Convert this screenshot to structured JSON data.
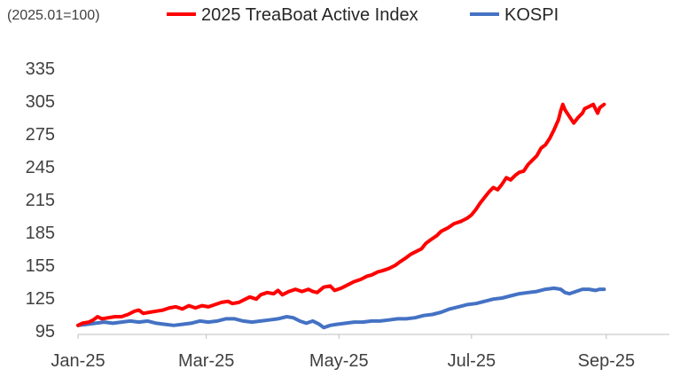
{
  "chart_data": {
    "type": "line",
    "unit_note": "(2025.01=100)",
    "grid": false,
    "legend_position": "top",
    "ylim": [
      95,
      335
    ],
    "yticks": [
      95,
      125,
      155,
      185,
      215,
      245,
      275,
      305,
      335
    ],
    "xlim": [
      "2025-01-01",
      "2025-09-30"
    ],
    "xticks": [
      {
        "date": "2025-01-01",
        "label": "Jan-25"
      },
      {
        "date": "2025-03-01",
        "label": "Mar-25"
      },
      {
        "date": "2025-05-01",
        "label": "May-25"
      },
      {
        "date": "2025-07-01",
        "label": "Jul-25"
      },
      {
        "date": "2025-09-01",
        "label": "Sep-25"
      }
    ],
    "series": [
      {
        "name": "2025 TreaBoat Active Index",
        "color": "#FF0000",
        "points": [
          [
            "2025-01-01",
            100
          ],
          [
            "2025-01-03",
            102
          ],
          [
            "2025-01-06",
            103
          ],
          [
            "2025-01-08",
            105
          ],
          [
            "2025-01-10",
            108
          ],
          [
            "2025-01-12",
            106
          ],
          [
            "2025-01-15",
            107
          ],
          [
            "2025-01-18",
            108
          ],
          [
            "2025-01-21",
            108
          ],
          [
            "2025-01-24",
            110
          ],
          [
            "2025-01-27",
            113
          ],
          [
            "2025-01-29",
            114
          ],
          [
            "2025-01-31",
            111
          ],
          [
            "2025-02-03",
            112
          ],
          [
            "2025-02-06",
            113
          ],
          [
            "2025-02-09",
            114
          ],
          [
            "2025-02-12",
            116
          ],
          [
            "2025-02-15",
            117
          ],
          [
            "2025-02-18",
            115
          ],
          [
            "2025-02-21",
            118
          ],
          [
            "2025-02-24",
            116
          ],
          [
            "2025-02-27",
            118
          ],
          [
            "2025-03-02",
            117
          ],
          [
            "2025-03-05",
            119
          ],
          [
            "2025-03-08",
            121
          ],
          [
            "2025-03-11",
            122
          ],
          [
            "2025-03-13",
            120
          ],
          [
            "2025-03-16",
            121
          ],
          [
            "2025-03-19",
            124
          ],
          [
            "2025-03-21",
            126
          ],
          [
            "2025-03-24",
            124
          ],
          [
            "2025-03-26",
            128
          ],
          [
            "2025-03-29",
            130
          ],
          [
            "2025-04-01",
            129
          ],
          [
            "2025-04-03",
            132
          ],
          [
            "2025-04-05",
            128
          ],
          [
            "2025-04-08",
            131
          ],
          [
            "2025-04-11",
            133
          ],
          [
            "2025-04-14",
            131
          ],
          [
            "2025-04-17",
            133
          ],
          [
            "2025-04-19",
            131
          ],
          [
            "2025-04-21",
            130
          ],
          [
            "2025-04-24",
            135
          ],
          [
            "2025-04-27",
            136
          ],
          [
            "2025-04-29",
            132
          ],
          [
            "2025-05-02",
            134
          ],
          [
            "2025-05-05",
            137
          ],
          [
            "2025-05-08",
            140
          ],
          [
            "2025-05-11",
            142
          ],
          [
            "2025-05-14",
            145
          ],
          [
            "2025-05-16",
            146
          ],
          [
            "2025-05-19",
            149
          ],
          [
            "2025-05-21",
            150
          ],
          [
            "2025-05-24",
            152
          ],
          [
            "2025-05-27",
            155
          ],
          [
            "2025-05-29",
            158
          ],
          [
            "2025-06-01",
            162
          ],
          [
            "2025-06-03",
            165
          ],
          [
            "2025-06-05",
            167
          ],
          [
            "2025-06-08",
            170
          ],
          [
            "2025-06-10",
            175
          ],
          [
            "2025-06-12",
            178
          ],
          [
            "2025-06-15",
            182
          ],
          [
            "2025-06-17",
            186
          ],
          [
            "2025-06-20",
            189
          ],
          [
            "2025-06-23",
            193
          ],
          [
            "2025-06-26",
            195
          ],
          [
            "2025-06-29",
            198
          ],
          [
            "2025-07-01",
            201
          ],
          [
            "2025-07-03",
            206
          ],
          [
            "2025-07-05",
            212
          ],
          [
            "2025-07-07",
            217
          ],
          [
            "2025-07-09",
            222
          ],
          [
            "2025-07-11",
            226
          ],
          [
            "2025-07-13",
            224
          ],
          [
            "2025-07-15",
            229
          ],
          [
            "2025-07-17",
            235
          ],
          [
            "2025-07-19",
            233
          ],
          [
            "2025-07-21",
            237
          ],
          [
            "2025-07-23",
            240
          ],
          [
            "2025-07-25",
            241
          ],
          [
            "2025-07-27",
            247
          ],
          [
            "2025-07-29",
            251
          ],
          [
            "2025-07-31",
            255
          ],
          [
            "2025-08-02",
            262
          ],
          [
            "2025-08-04",
            265
          ],
          [
            "2025-08-06",
            271
          ],
          [
            "2025-08-08",
            279
          ],
          [
            "2025-08-10",
            288
          ],
          [
            "2025-08-11",
            296
          ],
          [
            "2025-08-12",
            302
          ],
          [
            "2025-08-13",
            297
          ],
          [
            "2025-08-15",
            291
          ],
          [
            "2025-08-17",
            285
          ],
          [
            "2025-08-19",
            290
          ],
          [
            "2025-08-21",
            294
          ],
          [
            "2025-08-22",
            298
          ],
          [
            "2025-08-24",
            300
          ],
          [
            "2025-08-26",
            302
          ],
          [
            "2025-08-27",
            298
          ],
          [
            "2025-08-28",
            294
          ],
          [
            "2025-08-29",
            299
          ],
          [
            "2025-08-31",
            302
          ]
        ]
      },
      {
        "name": "KOSPI",
        "color": "#4472C4",
        "points": [
          [
            "2025-01-01",
            100
          ],
          [
            "2025-01-05",
            101
          ],
          [
            "2025-01-09",
            102
          ],
          [
            "2025-01-13",
            103
          ],
          [
            "2025-01-17",
            102
          ],
          [
            "2025-01-21",
            103
          ],
          [
            "2025-01-25",
            104
          ],
          [
            "2025-01-29",
            103
          ],
          [
            "2025-02-02",
            104
          ],
          [
            "2025-02-06",
            102
          ],
          [
            "2025-02-10",
            101
          ],
          [
            "2025-02-14",
            100
          ],
          [
            "2025-02-18",
            101
          ],
          [
            "2025-02-22",
            102
          ],
          [
            "2025-02-26",
            104
          ],
          [
            "2025-03-02",
            103
          ],
          [
            "2025-03-06",
            104
          ],
          [
            "2025-03-10",
            106
          ],
          [
            "2025-03-14",
            106
          ],
          [
            "2025-03-18",
            104
          ],
          [
            "2025-03-22",
            103
          ],
          [
            "2025-03-26",
            104
          ],
          [
            "2025-03-30",
            105
          ],
          [
            "2025-04-03",
            106
          ],
          [
            "2025-04-07",
            108
          ],
          [
            "2025-04-10",
            107
          ],
          [
            "2025-04-13",
            104
          ],
          [
            "2025-04-16",
            102
          ],
          [
            "2025-04-19",
            104
          ],
          [
            "2025-04-22",
            101
          ],
          [
            "2025-04-24",
            98
          ],
          [
            "2025-04-27",
            100
          ],
          [
            "2025-04-30",
            101
          ],
          [
            "2025-05-04",
            102
          ],
          [
            "2025-05-08",
            103
          ],
          [
            "2025-05-12",
            103
          ],
          [
            "2025-05-16",
            104
          ],
          [
            "2025-05-20",
            104
          ],
          [
            "2025-05-24",
            105
          ],
          [
            "2025-05-28",
            106
          ],
          [
            "2025-06-01",
            106
          ],
          [
            "2025-06-05",
            107
          ],
          [
            "2025-06-09",
            109
          ],
          [
            "2025-06-13",
            110
          ],
          [
            "2025-06-17",
            112
          ],
          [
            "2025-06-21",
            115
          ],
          [
            "2025-06-25",
            117
          ],
          [
            "2025-06-29",
            119
          ],
          [
            "2025-07-03",
            120
          ],
          [
            "2025-07-07",
            122
          ],
          [
            "2025-07-11",
            124
          ],
          [
            "2025-07-15",
            125
          ],
          [
            "2025-07-19",
            127
          ],
          [
            "2025-07-23",
            129
          ],
          [
            "2025-07-27",
            130
          ],
          [
            "2025-07-31",
            131
          ],
          [
            "2025-08-04",
            133
          ],
          [
            "2025-08-08",
            134
          ],
          [
            "2025-08-11",
            133
          ],
          [
            "2025-08-13",
            130
          ],
          [
            "2025-08-15",
            129
          ],
          [
            "2025-08-18",
            131
          ],
          [
            "2025-08-21",
            133
          ],
          [
            "2025-08-24",
            133
          ],
          [
            "2025-08-27",
            132
          ],
          [
            "2025-08-29",
            133
          ],
          [
            "2025-08-31",
            133
          ]
        ]
      }
    ]
  }
}
